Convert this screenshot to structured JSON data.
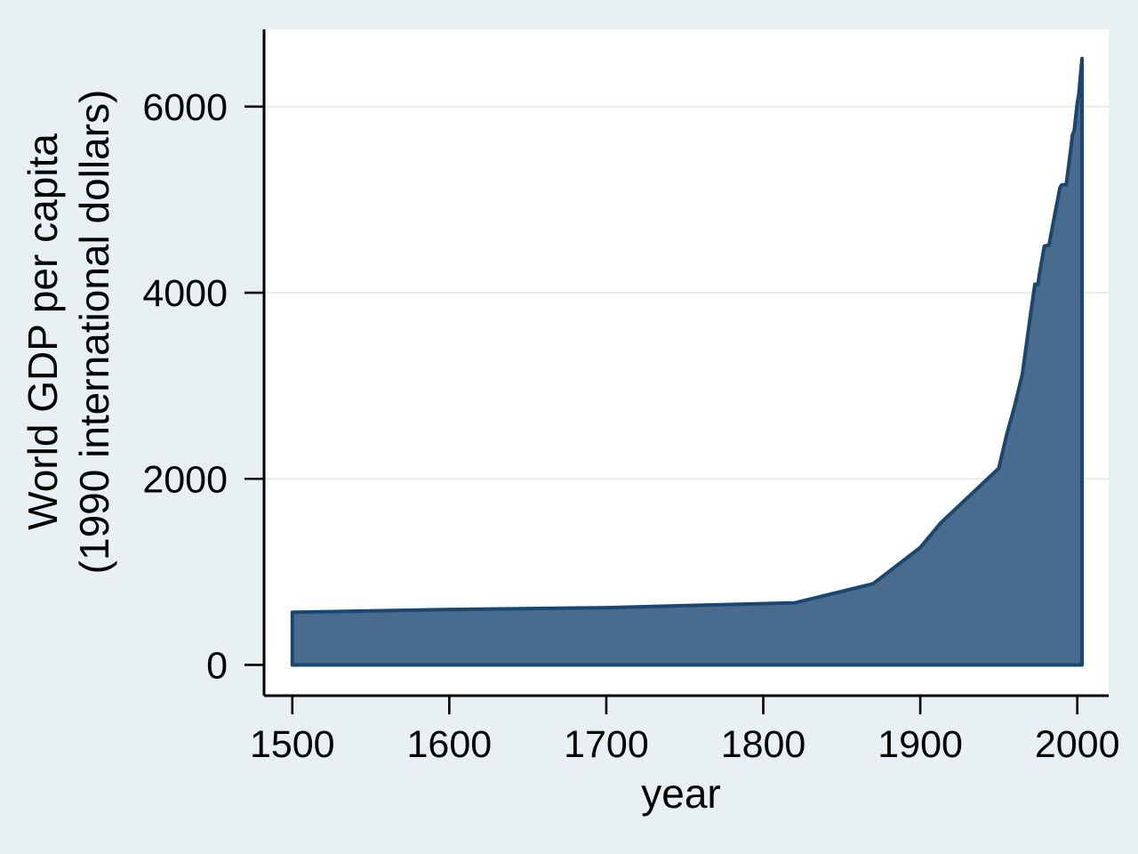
{
  "figure": {
    "background_color": "#e8f0f3",
    "plot_background": "#ffffff",
    "grid_color": "#e3edf3",
    "axis_color": "#000000",
    "text_color": "#000000",
    "area_fill": "#486b8e",
    "area_stroke": "#1a476f"
  },
  "chart_data": {
    "type": "area",
    "title": "",
    "xlabel": "year",
    "ylabel": "World GDP per capita (1990 international dollars)",
    "ylabel_lines": [
      "World GDP per capita",
      "(1990 international dollars)"
    ],
    "x_ticks": [
      1500,
      1600,
      1700,
      1800,
      1900,
      2000
    ],
    "y_ticks": [
      0,
      2000,
      4000,
      6000
    ],
    "xlim": [
      1482,
      2020
    ],
    "ylim": [
      -330,
      6830
    ],
    "grid_horizontal_at": [
      2000,
      4000,
      6000
    ],
    "baseline": 0,
    "legend": "none",
    "series": [
      {
        "name": "world-gdp-per-capita",
        "points": [
          [
            1500,
            566
          ],
          [
            1600,
            596
          ],
          [
            1700,
            615
          ],
          [
            1820,
            667
          ],
          [
            1870,
            873
          ],
          [
            1900,
            1262
          ],
          [
            1913,
            1526
          ],
          [
            1950,
            2113
          ],
          [
            1955,
            2472
          ],
          [
            1960,
            2777
          ],
          [
            1965,
            3124
          ],
          [
            1970,
            3736
          ],
          [
            1973,
            4091
          ],
          [
            1975,
            4088
          ],
          [
            1976,
            4212
          ],
          [
            1979,
            4500
          ],
          [
            1982,
            4512
          ],
          [
            1986,
            4870
          ],
          [
            1989,
            5130
          ],
          [
            1990,
            5157
          ],
          [
            1993,
            5162
          ],
          [
            1996,
            5560
          ],
          [
            1997,
            5700
          ],
          [
            1998,
            5740
          ],
          [
            2000,
            6037
          ],
          [
            2001,
            6130
          ],
          [
            2003,
            6516
          ]
        ]
      }
    ]
  }
}
